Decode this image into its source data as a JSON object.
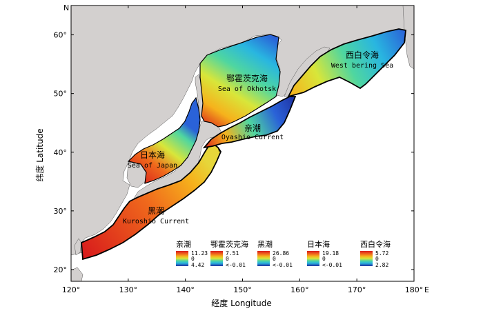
{
  "map": {
    "north_label": "N",
    "east_label": "E",
    "xlabel": "经度 Longitude",
    "ylabel": "纬度 Latitude",
    "x_ticks": [
      "120°",
      "130°",
      "140°",
      "150°",
      "160°",
      "170°",
      "180°"
    ],
    "y_ticks": [
      "60°",
      "50°",
      "40°",
      "30°",
      "20°"
    ],
    "lon_range": [
      120,
      180
    ],
    "lat_range": [
      18,
      65
    ],
    "colors": {
      "land": "#d3d0cf",
      "ocean_bg": "#ffffff",
      "boundary": "#000000",
      "ramp": [
        "#1e2fa0",
        "#2a62d8",
        "#29b6e0",
        "#4fd6a0",
        "#d8e63a",
        "#f6b21c",
        "#f06a1c",
        "#d7191c"
      ]
    }
  },
  "regions": {
    "okhotsk": {
      "cn": "鄂霍茨克海",
      "en": "Sea of Okhotsk"
    },
    "bering": {
      "cn": "西白令海",
      "en": "West bering Sea"
    },
    "oyashio": {
      "cn": "亲潮",
      "en": "Oyashio Current"
    },
    "japan": {
      "cn": "日本海",
      "en": "Sea of Japan"
    },
    "kuroshio": {
      "cn": "黑潮",
      "en": "Kuroshio Current"
    }
  },
  "legends": [
    {
      "title": "亲潮",
      "max": "11.23",
      "mid": "0",
      "min": "4.42"
    },
    {
      "title": "鄂霍茨克海",
      "max": "7.51",
      "mid": "0",
      "min": "<-0.01"
    },
    {
      "title": "黑潮",
      "max": "26.86",
      "mid": "0",
      "min": "<-0.01"
    },
    {
      "title": "日本海",
      "max": "19.18",
      "mid": "0",
      "min": "<-0.01"
    },
    {
      "title": "西白令海",
      "max": "5.72",
      "mid": "0",
      "min": "2.82"
    }
  ]
}
